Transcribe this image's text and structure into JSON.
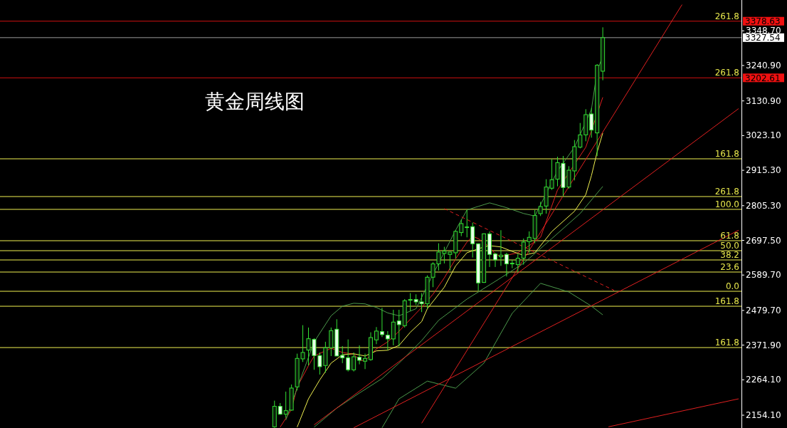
{
  "chart_data": {
    "type": "candlestick",
    "title": "黄金周线图",
    "tick_labels": "y",
    "color": "#33e033",
    "ylim": [
      2114.3,
      3444.5
    ],
    "yticks": [
      {
        "value": 2154.1,
        "label": "2154.10"
      },
      {
        "value": 2264.1,
        "label": "2264.10"
      },
      {
        "value": 2371.9,
        "label": "2371.90"
      },
      {
        "value": 2479.7,
        "label": "2479.70"
      },
      {
        "value": 2589.7,
        "label": "2589.70"
      },
      {
        "value": 2697.5,
        "label": "2697.50"
      },
      {
        "value": 2805.3,
        "label": "2805.30"
      },
      {
        "value": 2915.3,
        "label": "2915.30"
      },
      {
        "value": 3023.1,
        "label": "3023.10"
      },
      {
        "value": 3130.9,
        "label": "3130.90"
      },
      {
        "value": 3240.9,
        "label": "3240.90"
      },
      {
        "value": 3348.7,
        "label": "3348.70"
      }
    ],
    "categories": [
      null,
      null,
      null,
      null,
      null,
      null,
      null,
      null,
      null,
      null,
      null,
      null,
      null,
      null,
      null,
      null,
      null,
      null,
      null,
      null,
      null,
      null,
      null,
      null,
      null,
      null,
      null,
      null,
      null,
      null,
      null,
      null,
      null,
      null,
      null,
      null,
      null,
      null,
      null,
      null,
      null,
      null,
      null,
      null,
      null,
      null,
      null,
      null,
      null,
      null,
      null,
      null,
      null,
      null,
      null,
      null,
      null,
      null,
      null,
      null,
      null,
      null,
      null,
      null,
      null,
      null,
      null,
      null,
      null,
      null,
      null,
      null,
      null,
      null,
      null,
      null,
      null,
      null,
      null,
      null,
      null,
      null,
      null,
      null,
      null,
      null,
      null,
      null,
      null,
      null,
      null,
      null,
      null,
      null,
      null,
      null,
      null,
      null,
      null,
      null,
      null,
      null,
      null,
      null,
      null,
      null,
      null,
      null,
      null,
      null,
      null,
      null,
      null,
      null,
      null,
      null,
      null,
      null,
      null,
      null,
      null,
      null,
      null,
      null,
      null,
      null,
      null,
      null,
      null,
      null,
      null
    ],
    "ohlc": [
      null,
      null,
      null,
      null,
      null,
      null,
      null,
      null,
      null,
      null,
      null,
      null,
      null,
      null,
      null,
      null,
      null,
      null,
      null,
      null,
      null,
      null,
      null,
      null,
      null,
      null,
      null,
      null,
      null,
      null,
      null,
      null,
      null,
      null,
      null,
      null,
      null,
      null,
      null,
      null,
      null,
      null,
      null,
      null,
      null,
      null,
      null,
      null,
      [
        2118,
        2199.3,
        2115,
        2181.6
      ],
      [
        2181.6,
        2191.9,
        2155.0,
        2157.2
      ],
      [
        2157.2,
        2227.4,
        2146.2,
        2168.3
      ],
      [
        2169.8,
        2249.5,
        2168.3,
        2238.4
      ],
      [
        2242.1,
        2345.4,
        2231.0,
        2330.6
      ],
      [
        2329.1,
        2433.9,
        2319.5,
        2349.1
      ],
      [
        2356.4,
        2426.5,
        2308.5,
        2391.8
      ],
      [
        2389.6,
        2393.3,
        2295.2,
        2339.5
      ],
      [
        2339.5,
        2349.1,
        2280.4,
        2304.8
      ],
      [
        2308.5,
        2382.3,
        2286.3,
        2363.8
      ],
      [
        2363.8,
        2426.5,
        2338.0,
        2416.9
      ],
      [
        2421.3,
        2452.3,
        2338.0,
        2338.0
      ],
      [
        2340.2,
        2369.0,
        2315.9,
        2332.1
      ],
      [
        2332.8,
        2389.6,
        2290.0,
        2295.2
      ],
      [
        2295.2,
        2349.1,
        2290.0,
        2335.8
      ],
      [
        2334.3,
        2371.2,
        2312.2,
        2324.7
      ],
      [
        2321.8,
        2345.4,
        2297.4,
        2330.6
      ],
      [
        2326.9,
        2411.8,
        2323.2,
        2395.5
      ],
      [
        2388.2,
        2428.0,
        2374.9,
        2415.5
      ],
      [
        2414.0,
        2487.7,
        2397.0,
        2404.4
      ],
      [
        2402.9,
        2415.5,
        2356.4,
        2391.1
      ],
      [
        2391.1,
        2481.8,
        2371.2,
        2443.5
      ],
      [
        2447.2,
        2481.8,
        2367.5,
        2435.4
      ],
      [
        2432.4,
        2515.0,
        2426.5,
        2509.9
      ],
      [
        2511.3,
        2533.5,
        2478.2,
        2513.6
      ],
      [
        2513.6,
        2529.8,
        2496.6,
        2506.2
      ],
      [
        2506.2,
        2533.5,
        2474.5,
        2500.3
      ],
      [
        2500.3,
        2588.8,
        2485.6,
        2582.9
      ],
      [
        2582.9,
        2629.4,
        2552.0,
        2624.3
      ],
      [
        2624.3,
        2688.4,
        2603.6,
        2661.1
      ],
      [
        2656.7,
        2677.4,
        2625.7,
        2664.1
      ],
      [
        2653.8,
        2662.6,
        2603.6,
        2661.1
      ],
      [
        2658.9,
        2729.0,
        2640.5,
        2725.3
      ],
      [
        2721.6,
        2762.2,
        2710.6,
        2749.7
      ],
      [
        2737.9,
        2791.7,
        2706.9,
        2739.3
      ],
      [
        2740.1,
        2752.6,
        2644.2,
        2686.9
      ],
      [
        2686.9,
        2688.4,
        2540.9,
        2565.2
      ],
      [
        2566.7,
        2719.4,
        2565.2,
        2717.9
      ],
      [
        2717.9,
        2725.3,
        2614.7,
        2653.8
      ],
      [
        2655.2,
        2658.9,
        2614.7,
        2636.8
      ],
      [
        2646.4,
        2729.0,
        2618.3,
        2651.5
      ],
      [
        2653.8,
        2658.9,
        2585.2,
        2624.3
      ],
      [
        2624.3,
        2636.8,
        2611.0,
        2626.5
      ],
      [
        2622.0,
        2655.2,
        2599.9,
        2642.0
      ],
      [
        2642.0,
        2703.2,
        2622.0,
        2692.1
      ],
      [
        2693.6,
        2725.3,
        2658.9,
        2706.9
      ],
      [
        2703.2,
        2791.7,
        2688.4,
        2774.7
      ],
      [
        2780.5,
        2817.4,
        2773.1,
        2802.7
      ],
      [
        2804.1,
        2887.5,
        2780.5,
        2863.2
      ],
      [
        2859.5,
        2950.2,
        2854.3,
        2886.0
      ],
      [
        2887.5,
        2957.6,
        2865.4,
        2939.1
      ],
      [
        2936.9,
        2959.8,
        2833.6,
        2861.7
      ],
      [
        2863.2,
        2928.1,
        2858.0,
        2915.5
      ],
      [
        2913.3,
        3009.2,
        2883.8,
        2988.6
      ],
      [
        2987.1,
        3062.3,
        2983.4,
        3025.4
      ],
      [
        3025.4,
        3105.1,
        3005.5,
        3088.2
      ],
      [
        3090.4,
        3108.8,
        3016.6,
        3040.2
      ],
      [
        3031.4,
        3245.3,
        2959.1,
        3241.6
      ],
      [
        3223.2,
        3359.6,
        3195.1,
        3327.5
      ],
      null,
      null,
      null,
      null,
      null,
      null,
      null,
      null,
      null,
      null,
      null,
      null,
      null,
      null,
      null,
      null,
      null,
      null,
      null,
      null,
      null,
      null,
      null,
      null
    ],
    "series": [
      {
        "type": "line",
        "color": "#e02020",
        "values": [
          null,
          null,
          null,
          null,
          null,
          null,
          null,
          null,
          null,
          null,
          null,
          null,
          null,
          null,
          null,
          null,
          null,
          null,
          null,
          null,
          null,
          null,
          null,
          null,
          null,
          null,
          null,
          null,
          null,
          null,
          null,
          null,
          null,
          null,
          null,
          null,
          null,
          null,
          null,
          null,
          null,
          null,
          null,
          null,
          null,
          null,
          null,
          null,
          null,
          2117,
          null,
          2172,
          2242,
          null,
          2308,
          2338,
          null,
          null,
          2362,
          null,
          2349,
          null,
          2344,
          2325,
          2323,
          2342,
          2360,
          null,
          2382,
          null,
          2415,
          2434,
          null,
          null,
          2489,
          null,
          2530,
          null,
          2581,
          null,
          2640,
          null,
          2692,
          2710,
          2703,
          null,
          2677,
          2655,
          2648,
          2651,
          null,
          2659,
          null,
          2681,
          null,
          2707,
          null,
          null,
          2854,
          null,
          null,
          null,
          null,
          2987,
          3039,
          null,
          3142,
          null,
          null,
          null,
          null,
          null,
          null,
          null,
          null,
          null,
          null,
          null,
          null,
          null,
          null,
          null,
          null,
          null,
          null,
          null,
          null,
          null,
          null,
          null,
          null
        ]
      },
      {
        "type": "line",
        "color": "#f0f050",
        "values": [
          null,
          null,
          null,
          null,
          null,
          null,
          null,
          null,
          null,
          null,
          null,
          null,
          null,
          null,
          null,
          null,
          null,
          null,
          null,
          null,
          null,
          null,
          null,
          null,
          null,
          null,
          null,
          null,
          null,
          null,
          null,
          null,
          null,
          null,
          null,
          null,
          null,
          null,
          null,
          null,
          null,
          null,
          null,
          null,
          null,
          null,
          null,
          null,
          null,
          null,
          null,
          null,
          2117,
          null,
          2205,
          null,
          2264,
          null,
          2316,
          null,
          2342,
          null,
          2345,
          null,
          2338,
          null,
          2354,
          null,
          2356,
          null,
          2371,
          null,
          2412,
          null,
          2445,
          2485,
          null,
          null,
          2552,
          null,
          2618,
          null,
          2659,
          null,
          null,
          2677,
          2681,
          null,
          2677,
          null,
          2663,
          null,
          2651,
          null,
          2659,
          null,
          null,
          2725,
          null,
          null,
          null,
          2788,
          null,
          2840,
          2899,
          2972,
          3031,
          null,
          null,
          null,
          null,
          null,
          null,
          null,
          null,
          null,
          null,
          null,
          null,
          null,
          null,
          null,
          null,
          null,
          null,
          null,
          null,
          null,
          null,
          null,
          null
        ]
      },
      {
        "type": "line",
        "color": "#4c9a4c",
        "values": [
          null,
          null,
          null,
          null,
          null,
          null,
          null,
          null,
          null,
          null,
          null,
          null,
          null,
          null,
          null,
          null,
          null,
          null,
          null,
          null,
          null,
          null,
          null,
          null,
          null,
          null,
          null,
          null,
          null,
          null,
          null,
          null,
          null,
          null,
          null,
          null,
          null,
          null,
          null,
          null,
          null,
          null,
          null,
          null,
          null,
          null,
          null,
          null,
          null,
          null,
          2139,
          null,
          2238,
          null,
          null,
          2382,
          null,
          null,
          2463,
          null,
          2493,
          null,
          2502,
          null,
          2500,
          null,
          2489,
          null,
          2472,
          null,
          2463,
          null,
          null,
          2485,
          null,
          null,
          2592,
          null,
          null,
          null,
          2729,
          null,
          2792,
          null,
          2803,
          null,
          2814,
          null,
          null,
          2799,
          null,
          null,
          2781,
          null,
          2773,
          null,
          null,
          null,
          2913,
          null,
          null,
          2987,
          null,
          null,
          3105,
          3223,
          3271,
          null,
          null,
          null,
          null,
          null,
          null,
          null,
          null,
          null,
          null,
          null,
          null,
          null,
          null,
          null,
          null,
          null,
          null,
          null,
          null,
          null,
          null,
          null,
          null
        ]
      },
      {
        "type": "line",
        "color": "#4c9a4c",
        "values": [
          null,
          null,
          null,
          null,
          null,
          null,
          null,
          null,
          null,
          null,
          null,
          null,
          null,
          null,
          null,
          null,
          null,
          null,
          null,
          null,
          null,
          null,
          null,
          null,
          null,
          null,
          null,
          null,
          null,
          null,
          null,
          null,
          null,
          null,
          null,
          null,
          null,
          null,
          null,
          null,
          null,
          null,
          null,
          null,
          null,
          null,
          null,
          null,
          null,
          null,
          null,
          null,
          null,
          null,
          null,
          2117,
          null,
          null,
          null,
          2176,
          null,
          null,
          null,
          2223,
          null,
          null,
          null,
          2268,
          null,
          null,
          2316,
          null,
          null,
          null,
          2386,
          null,
          null,
          2449,
          null,
          null,
          null,
          null,
          2515,
          null,
          null,
          null,
          null,
          2570,
          null,
          null,
          null,
          null,
          2626,
          null,
          null,
          null,
          null,
          2703,
          null,
          null,
          null,
          null,
          2781,
          null,
          null,
          null,
          2865,
          null,
          null,
          null,
          null,
          null,
          null,
          null,
          null,
          null,
          null,
          null,
          null,
          null,
          null,
          null,
          null,
          null,
          null,
          null,
          null,
          null,
          null,
          null,
          null
        ]
      },
      {
        "type": "line",
        "color": "#4c9a4c",
        "values": [
          null,
          null,
          null,
          null,
          null,
          null,
          null,
          null,
          null,
          null,
          null,
          null,
          null,
          null,
          null,
          null,
          null,
          null,
          null,
          null,
          null,
          null,
          null,
          null,
          null,
          null,
          null,
          null,
          null,
          null,
          null,
          null,
          null,
          null,
          null,
          null,
          null,
          null,
          null,
          null,
          null,
          null,
          null,
          null,
          null,
          null,
          null,
          null,
          null,
          null,
          null,
          null,
          null,
          null,
          null,
          null,
          null,
          null,
          null,
          null,
          null,
          null,
          null,
          null,
          null,
          null,
          null,
          2115,
          null,
          null,
          2205,
          null,
          null,
          null,
          null,
          2260,
          null,
          null,
          null,
          null,
          2238,
          null,
          null,
          null,
          null,
          2316,
          null,
          null,
          null,
          null,
          2471,
          null,
          null,
          null,
          null,
          2564,
          null,
          null,
          null,
          null,
          2537,
          null,
          null,
          null,
          2493,
          null,
          2466,
          null,
          null,
          null,
          null,
          null,
          null,
          null,
          null,
          null,
          null,
          null,
          null,
          null,
          null,
          null,
          null,
          null,
          null,
          null,
          null,
          null,
          null,
          null,
          null
        ]
      },
      {
        "type": "line",
        "color": "#e02020",
        "values": [
          null,
          null,
          null,
          null,
          null,
          null,
          null,
          null,
          null,
          null,
          null,
          null,
          null,
          null,
          null,
          null,
          null,
          null,
          null,
          null,
          null,
          null,
          null,
          null,
          null,
          null,
          null,
          null,
          null,
          null,
          null,
          null,
          null,
          null,
          null,
          null,
          null,
          null,
          null,
          null,
          null,
          null,
          null,
          null,
          null,
          null,
          null,
          null,
          null,
          null,
          null,
          null,
          null,
          null,
          null,
          null,
          null,
          null,
          null,
          null,
          null,
          null,
          null,
          null,
          null,
          null,
          null,
          null,
          null,
          null,
          null,
          null,
          null,
          null,
          2129,
          null,
          null,
          null,
          null,
          null,
          null,
          null,
          null,
          null,
          null,
          null,
          null,
          null,
          null,
          null,
          null,
          null,
          null,
          null,
          null,
          null,
          null,
          null,
          null,
          null,
          null,
          null,
          null,
          null,
          null,
          null,
          null,
          null,
          null,
          null,
          null,
          null,
          null,
          null,
          null,
          null,
          null,
          null,
          null,
          null,
          3430,
          null,
          null,
          null,
          null,
          null,
          null,
          null,
          null,
          null,
          null
        ]
      },
      {
        "type": "line",
        "color": "#e02020",
        "values": [
          null,
          null,
          null,
          null,
          null,
          null,
          null,
          null,
          null,
          null,
          null,
          null,
          null,
          null,
          null,
          null,
          null,
          null,
          null,
          null,
          null,
          null,
          null,
          null,
          null,
          null,
          null,
          null,
          null,
          null,
          null,
          null,
          null,
          null,
          null,
          null,
          null,
          null,
          null,
          null,
          null,
          null,
          null,
          null,
          null,
          null,
          null,
          null,
          null,
          null,
          null,
          null,
          null,
          null,
          null,
          2124,
          null,
          null,
          null,
          null,
          null,
          null,
          null,
          null,
          null,
          null,
          null,
          null,
          null,
          null,
          null,
          null,
          null,
          null,
          null,
          null,
          null,
          null,
          null,
          null,
          null,
          null,
          null,
          null,
          null,
          null,
          null,
          null,
          null,
          null,
          null,
          null,
          null,
          null,
          null,
          null,
          null,
          null,
          null,
          null,
          null,
          null,
          null,
          null,
          null,
          null,
          null,
          null,
          null,
          null,
          null,
          null,
          null,
          null,
          null,
          null,
          null,
          null,
          null,
          null,
          null,
          null,
          null,
          null,
          null,
          null,
          null,
          null,
          null,
          null,
          3107
        ]
      },
      {
        "type": "line",
        "color": "#e02020",
        "values": [
          null,
          null,
          null,
          null,
          null,
          null,
          null,
          null,
          null,
          null,
          null,
          null,
          null,
          null,
          null,
          null,
          null,
          null,
          null,
          null,
          null,
          null,
          null,
          null,
          null,
          null,
          null,
          null,
          null,
          null,
          null,
          null,
          null,
          null,
          null,
          null,
          null,
          null,
          null,
          null,
          null,
          null,
          null,
          null,
          null,
          null,
          null,
          null,
          null,
          null,
          null,
          null,
          null,
          null,
          null,
          null,
          null,
          null,
          null,
          null,
          null,
          null,
          2115,
          null,
          null,
          null,
          null,
          null,
          null,
          null,
          null,
          null,
          null,
          null,
          null,
          null,
          null,
          null,
          null,
          null,
          null,
          null,
          null,
          null,
          null,
          null,
          null,
          null,
          null,
          null,
          null,
          null,
          null,
          null,
          null,
          null,
          null,
          null,
          null,
          null,
          null,
          null,
          null,
          null,
          null,
          null,
          null,
          null,
          null,
          null,
          null,
          null,
          null,
          null,
          null,
          null,
          null,
          null,
          null,
          null,
          null,
          null,
          null,
          null,
          null,
          null,
          null,
          null,
          null,
          null,
          2729
        ]
      },
      {
        "type": "line",
        "color": "#e02020",
        "values": [
          null,
          null,
          null,
          null,
          null,
          null,
          null,
          null,
          null,
          null,
          null,
          null,
          null,
          null,
          null,
          null,
          null,
          null,
          null,
          null,
          null,
          null,
          null,
          null,
          null,
          null,
          null,
          null,
          null,
          null,
          null,
          null,
          null,
          null,
          null,
          null,
          null,
          null,
          null,
          null,
          null,
          null,
          null,
          null,
          null,
          null,
          null,
          null,
          null,
          null,
          null,
          null,
          null,
          null,
          null,
          null,
          null,
          null,
          null,
          null,
          null,
          null,
          null,
          null,
          null,
          null,
          null,
          null,
          null,
          null,
          null,
          null,
          null,
          null,
          null,
          null,
          null,
          null,
          null,
          null,
          null,
          null,
          null,
          null,
          null,
          null,
          null,
          null,
          null,
          null,
          null,
          null,
          null,
          null,
          null,
          null,
          null,
          null,
          null,
          null,
          null,
          null,
          null,
          null,
          null,
          null,
          null,
          2118,
          null,
          null,
          null,
          null,
          null,
          null,
          null,
          null,
          null,
          null,
          null,
          null,
          null,
          null,
          null,
          null,
          null,
          null,
          null,
          null,
          null,
          null,
          2205
        ]
      },
      {
        "type": "line",
        "color": "#e02020",
        "line_style": "dashed",
        "values": [
          null,
          null,
          null,
          null,
          null,
          null,
          null,
          null,
          null,
          null,
          null,
          null,
          null,
          null,
          null,
          null,
          null,
          null,
          null,
          null,
          null,
          null,
          null,
          null,
          null,
          null,
          null,
          null,
          null,
          null,
          null,
          null,
          null,
          null,
          null,
          null,
          null,
          null,
          null,
          null,
          null,
          null,
          null,
          null,
          null,
          null,
          null,
          null,
          null,
          null,
          null,
          null,
          null,
          null,
          null,
          null,
          null,
          null,
          null,
          null,
          null,
          null,
          null,
          null,
          null,
          null,
          null,
          null,
          null,
          null,
          null,
          null,
          null,
          null,
          null,
          null,
          null,
          null,
          2796,
          null,
          null,
          null,
          null,
          null,
          null,
          null,
          null,
          null,
          null,
          null,
          null,
          null,
          null,
          null,
          null,
          null,
          null,
          null,
          null,
          null,
          null,
          null,
          null,
          null,
          null,
          null,
          null,
          null,
          2542,
          null,
          null,
          null,
          null,
          null,
          null,
          null,
          null,
          null,
          null,
          null,
          null,
          null,
          null,
          null,
          null,
          null,
          null,
          null,
          null,
          null,
          null
        ]
      }
    ],
    "ref_lines": [
      {
        "axis": "y",
        "value": 3378.63,
        "label": "3378.63",
        "color": "#d01010"
      },
      {
        "axis": "y",
        "value": 3327.54,
        "label": "3327.54",
        "color": "#9a9a9a"
      },
      {
        "axis": "y",
        "value": 3202.61,
        "label": "3202.61",
        "color": "#d01010"
      },
      {
        "axis": "y",
        "value": 2950.9,
        "color": "#f0f050"
      },
      {
        "axis": "y",
        "value": 2833.6,
        "color": "#f0f050"
      },
      {
        "axis": "y",
        "value": 2793.8,
        "color": "#f0f050"
      },
      {
        "axis": "y",
        "value": 2696.4,
        "color": "#f0f050"
      },
      {
        "axis": "y",
        "value": 2665.4,
        "color": "#f0f050"
      },
      {
        "axis": "y",
        "value": 2636.6,
        "color": "#f0f050"
      },
      {
        "axis": "y",
        "value": 2599.0,
        "color": "#f0f050"
      },
      {
        "axis": "y",
        "value": 2539.2,
        "color": "#f0f050"
      },
      {
        "axis": "y",
        "value": 2492.7,
        "color": "#f0f050"
      },
      {
        "axis": "y",
        "value": 2364.3,
        "color": "#f0f050"
      }
    ],
    "annotations": [
      {
        "text": "261.8",
        "y": 3378.63
      },
      {
        "text": "261.8",
        "y": 3202.61
      },
      {
        "text": "161.8",
        "y": 2950.9
      },
      {
        "text": "261.8",
        "y": 2833.6
      },
      {
        "text": "100.0",
        "y": 2793.8
      },
      {
        "text": "61.8",
        "y": 2696.4
      },
      {
        "text": "50.0",
        "y": 2665.4
      },
      {
        "text": "38.2",
        "y": 2636.6
      },
      {
        "text": "23.6",
        "y": 2599.0
      },
      {
        "text": "0.0",
        "y": 2539.2
      },
      {
        "text": "161.8",
        "y": 2492.7
      },
      {
        "text": "161.8",
        "y": 2364.3
      }
    ]
  }
}
